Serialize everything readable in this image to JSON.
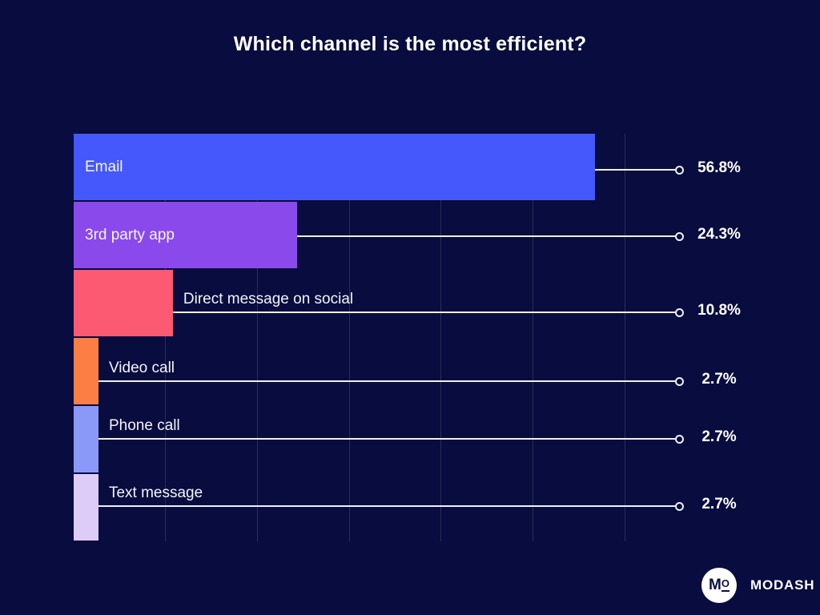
{
  "title": "Which channel is the most efficient?",
  "chart_data": {
    "type": "bar",
    "orientation": "horizontal",
    "unit": "%",
    "categories": [
      "Email",
      "3rd party app",
      "Direct message on social",
      "Video call",
      "Phone call",
      "Text message"
    ],
    "values": [
      56.8,
      24.3,
      10.8,
      2.7,
      2.7,
      2.7
    ],
    "value_labels": [
      "56.8%",
      "24.3%",
      "10.8%",
      "2.7%",
      "2.7%",
      "2.7%"
    ],
    "bar_colors": [
      "#4458fb",
      "#8a4aeb",
      "#fc5a72",
      "#fc7e44",
      "#8a99f8",
      "#deccf8"
    ],
    "label_placement": [
      "inside",
      "inside",
      "outside",
      "outside",
      "outside",
      "outside"
    ],
    "xlim": [
      0,
      100
    ],
    "gridlines_pct": [
      10,
      20,
      30,
      40,
      50,
      60
    ],
    "grid": "vertical gridlines every 10% up to 60%, no axis tick labels",
    "legend_position": "none",
    "annotation_style": "leader line from bar end to small open circle with bold percent label"
  },
  "colors": {
    "background": "#080c3e",
    "title_text": "#ffffff",
    "gridline": "rgba(255,255,255,0.14)",
    "leader_line": "#eef0f6",
    "label_text": "#f4f5fa"
  },
  "branding": {
    "logo_mark_m": "M",
    "logo_mark_o": "O",
    "logo_text": "MODASH"
  }
}
